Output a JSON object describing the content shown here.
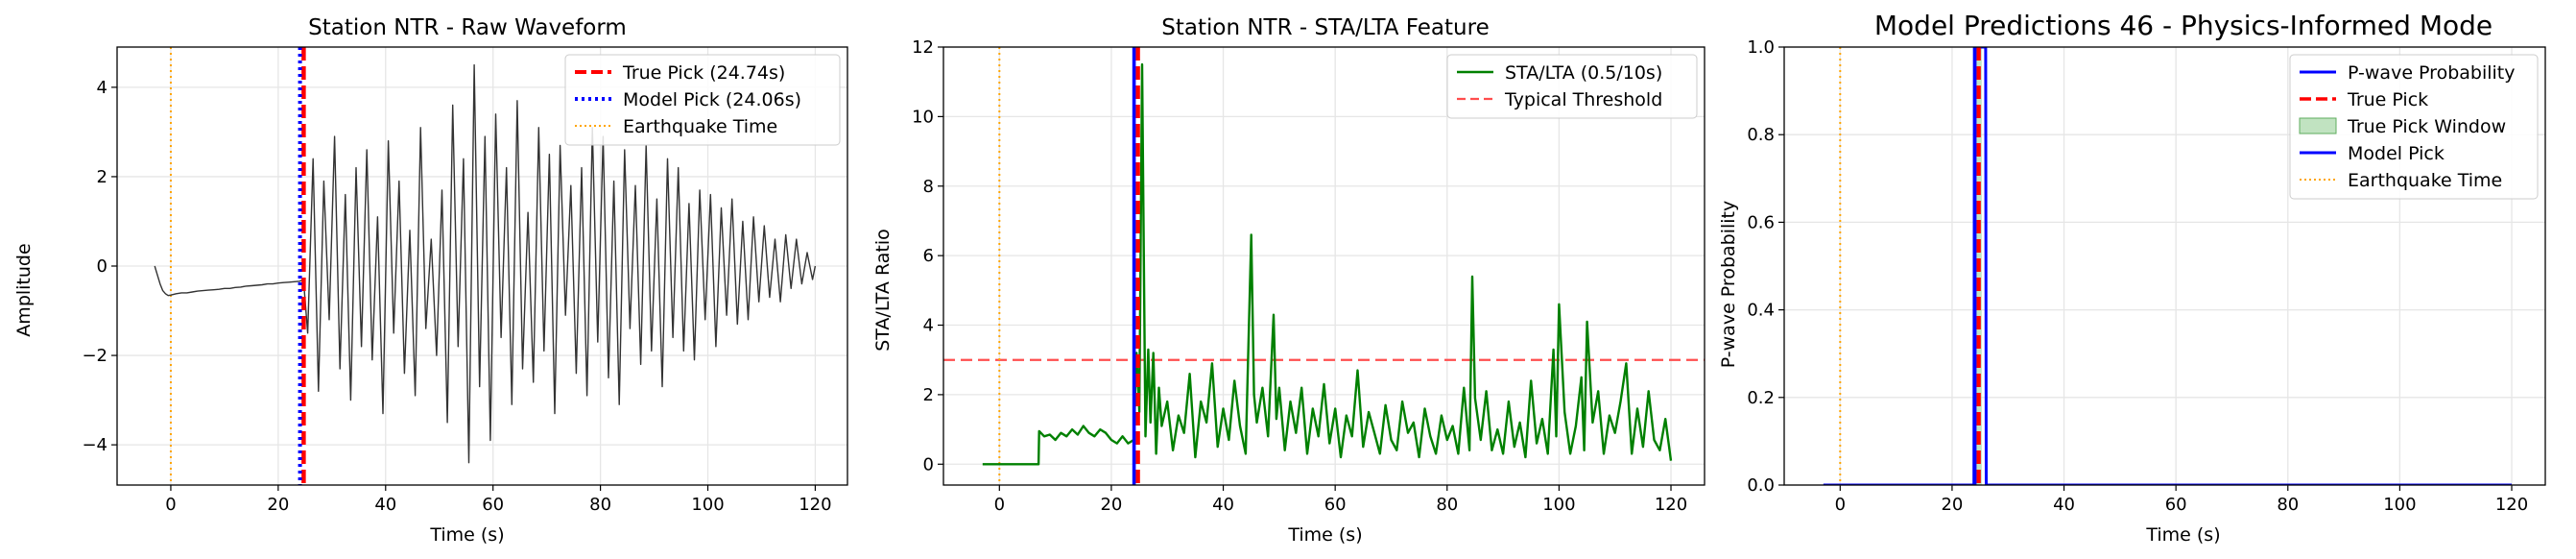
{
  "chart_data": [
    {
      "type": "line",
      "title": "Station NTR - Raw Waveform",
      "xlabel": "Time (s)",
      "ylabel": "Amplitude",
      "xlim": [
        -10,
        126
      ],
      "ylim": [
        -4.9,
        4.9
      ],
      "xticks": [
        0,
        20,
        40,
        60,
        80,
        100,
        120
      ],
      "yticks": [
        -4,
        -2,
        0,
        2,
        4
      ],
      "ytick_labels": [
        "−4",
        "−2",
        "0",
        "2",
        "4"
      ],
      "grid": true,
      "legend_position": "top-right",
      "legend": [
        "True Pick (24.74s)",
        "Model Pick (24.06s)",
        "Earthquake Time"
      ],
      "series": [
        {
          "name": "waveform",
          "color": "#333333",
          "x": [
            -3,
            -2.5,
            -2,
            -1.5,
            -1,
            -0.5,
            0,
            1,
            2,
            3,
            4,
            5,
            6,
            7,
            8,
            9,
            10,
            11,
            12,
            13,
            14,
            15,
            16,
            17,
            18,
            19,
            20,
            21,
            22,
            23,
            24,
            24.7,
            25.5,
            26.5,
            27.5,
            28.5,
            29.5,
            30.5,
            31.5,
            32.5,
            33.5,
            34.5,
            35.5,
            36.5,
            37.5,
            38.5,
            39.5,
            40.5,
            41.5,
            42.5,
            43.5,
            44.5,
            45.5,
            46.5,
            47.5,
            48.5,
            49.5,
            50.5,
            51.5,
            52.5,
            53.5,
            54.5,
            55.5,
            56.5,
            57.5,
            58.5,
            59.5,
            60.5,
            61.5,
            62.5,
            63.5,
            64.5,
            65.5,
            66.5,
            67.5,
            68.5,
            69.5,
            70.5,
            71.5,
            72.5,
            73.5,
            74.5,
            75.5,
            76.5,
            77.5,
            78.5,
            79.5,
            80.5,
            81.5,
            82.5,
            83.5,
            84.5,
            85.5,
            86.5,
            87.5,
            88.5,
            89.5,
            90.5,
            91.5,
            92.5,
            93.5,
            94.5,
            95.5,
            96.5,
            97.5,
            98.5,
            99.5,
            100.5,
            101.5,
            102.5,
            103.5,
            104.5,
            105.5,
            106.5,
            107.5,
            108.5,
            109.5,
            110.5,
            111.5,
            112.5,
            113.5,
            114.5,
            115.5,
            116.5,
            117.5,
            118.5,
            119.5,
            120
          ],
          "y": [
            0,
            -0.2,
            -0.4,
            -0.55,
            -0.62,
            -0.66,
            -0.65,
            -0.62,
            -0.6,
            -0.6,
            -0.58,
            -0.56,
            -0.55,
            -0.54,
            -0.53,
            -0.52,
            -0.5,
            -0.5,
            -0.48,
            -0.47,
            -0.45,
            -0.44,
            -0.43,
            -0.42,
            -0.4,
            -0.4,
            -0.38,
            -0.37,
            -0.36,
            -0.35,
            -0.34,
            -0.3,
            -1.5,
            2.4,
            -2.8,
            1.9,
            -1.2,
            2.9,
            -2.3,
            1.6,
            -3,
            2.2,
            -1.8,
            2.6,
            -2.1,
            1.1,
            -3.3,
            2.8,
            -1.5,
            1.9,
            -2.4,
            0.8,
            -2.9,
            3.1,
            -1.4,
            0.6,
            -2,
            1.7,
            -3.5,
            3.6,
            -1.8,
            2.4,
            -4.4,
            4.5,
            -2.7,
            2.9,
            -3.9,
            3.4,
            -1.6,
            2.2,
            -3.1,
            3.7,
            -2.3,
            1.2,
            -2.6,
            3.1,
            -1.9,
            2.5,
            -3.3,
            2.7,
            -1.1,
            1.8,
            -2.4,
            2.2,
            -2.9,
            3.1,
            -1.7,
            2.9,
            -2.5,
            1.9,
            -3.1,
            2.6,
            -1.4,
            1.8,
            -2.2,
            2.7,
            -1.9,
            1.5,
            -2.7,
            2.4,
            -1.6,
            2.2,
            -1.9,
            1.4,
            -2.1,
            1.7,
            -1.2,
            1.6,
            -1.8,
            1.3,
            -1.1,
            1.5,
            -1.3,
            1,
            -1.2,
            1.1,
            -0.8,
            0.9,
            -0.7,
            0.6,
            -0.8,
            0.7,
            -0.5,
            0.6,
            -0.4,
            0.3,
            -0.3,
            0
          ]
        }
      ],
      "vlines": [
        {
          "x": 24.74,
          "color": "#ff0000",
          "style": "dashed",
          "label": "True Pick (24.74s)"
        },
        {
          "x": 24.06,
          "color": "#0000ff",
          "style": "dotted",
          "label": "Model Pick (24.06s)"
        },
        {
          "x": 0,
          "color": "#ffa500",
          "style": "dotted",
          "label": "Earthquake Time"
        }
      ]
    },
    {
      "type": "line",
      "title": "Station NTR - STA/LTA Feature",
      "xlabel": "Time (s)",
      "ylabel": "STA/LTA Ratio",
      "xlim": [
        -10,
        126
      ],
      "ylim": [
        -0.6,
        12
      ],
      "xticks": [
        0,
        20,
        40,
        60,
        80,
        100,
        120
      ],
      "yticks": [
        0,
        2,
        4,
        6,
        8,
        10,
        12
      ],
      "grid": true,
      "legend_position": "top-right",
      "legend": [
        "STA/LTA (0.5/10s)",
        "Typical Threshold"
      ],
      "series": [
        {
          "name": "STA/LTA (0.5/10s)",
          "color": "#008000",
          "x": [
            -3,
            7,
            7.1,
            8,
            9,
            10,
            11,
            12,
            13,
            14,
            15,
            16,
            17,
            18,
            19,
            20,
            21,
            22,
            23,
            24,
            24.5,
            25,
            25.5,
            26,
            26.1,
            26.6,
            27,
            27.5,
            28,
            28.5,
            29,
            30,
            31,
            32,
            33,
            34,
            35,
            36,
            37,
            38,
            39,
            40,
            41,
            42,
            43,
            44,
            45,
            45.5,
            46,
            47,
            48,
            49,
            49.5,
            50,
            51,
            52,
            53,
            54,
            55,
            56,
            57,
            58,
            59,
            60,
            61,
            62,
            63,
            64,
            65,
            66,
            67,
            68,
            69,
            70,
            71,
            72,
            73,
            74,
            75,
            76,
            77,
            78,
            79,
            80,
            81,
            82,
            83,
            84,
            84.5,
            85,
            86,
            87,
            88,
            89,
            90,
            91,
            92,
            93,
            94,
            95,
            96,
            97,
            98,
            99,
            99.5,
            100,
            101,
            102,
            103,
            104,
            104.5,
            105,
            106,
            107,
            108,
            109,
            110,
            111,
            112,
            113,
            114,
            115,
            116,
            117,
            118,
            119,
            120
          ],
          "y": [
            0,
            0,
            0.95,
            0.8,
            0.85,
            0.7,
            0.9,
            0.8,
            1,
            0.85,
            1.1,
            0.9,
            0.8,
            1,
            0.9,
            0.7,
            0.6,
            0.8,
            0.6,
            0.7,
            3.2,
            1.5,
            11.5,
            2.5,
            0.8,
            3.3,
            1.2,
            3.2,
            0.3,
            2.2,
            1.1,
            1.8,
            0.4,
            1.4,
            0.9,
            2.6,
            0.2,
            1.8,
            1.2,
            2.9,
            0.5,
            1.6,
            0.7,
            2.4,
            1.1,
            0.3,
            6.6,
            2,
            1.2,
            2.2,
            0.8,
            4.3,
            1.3,
            2.2,
            0.4,
            1.8,
            0.9,
            2.2,
            0.3,
            1.6,
            0.8,
            2.3,
            0.6,
            1.6,
            0.2,
            1.4,
            0.8,
            2.7,
            0.5,
            1.5,
            0.9,
            0.3,
            1.7,
            0.7,
            0.4,
            1.8,
            0.9,
            1.2,
            0.2,
            1.6,
            0.8,
            0.3,
            1.4,
            0.7,
            1.1,
            0.3,
            2.2,
            0.4,
            5.4,
            1.9,
            0.7,
            2.1,
            0.4,
            1,
            0.3,
            1.8,
            0.5,
            1.2,
            0.2,
            2.4,
            0.6,
            1.3,
            0.3,
            3.3,
            0.8,
            4.6,
            1.5,
            0.3,
            1.1,
            2.5,
            0.4,
            4.1,
            1.2,
            2.1,
            0.3,
            1.4,
            0.9,
            1.8,
            2.9,
            0.3,
            1.6,
            0.5,
            2.1,
            0.7,
            0.4,
            1.3,
            0.1
          ]
        }
      ],
      "hline": {
        "y": 3,
        "color": "#ff4d4d",
        "style": "dashed",
        "label": "Typical Threshold"
      },
      "vlines": [
        {
          "x": 24.74,
          "color": "#ff0000",
          "style": "dashed"
        },
        {
          "x": 24.06,
          "color": "#0000ff",
          "style": "solid"
        },
        {
          "x": 0,
          "color": "#ffa500",
          "style": "dotted"
        }
      ]
    },
    {
      "type": "line",
      "title": "Model Predictions 46 - Physics-Informed Mode",
      "xlabel": "Time (s)",
      "ylabel": "P-wave Probability",
      "xlim": [
        -10,
        126
      ],
      "ylim": [
        0,
        1
      ],
      "xticks": [
        0,
        20,
        40,
        60,
        80,
        100,
        120
      ],
      "yticks": [
        0,
        0.2,
        0.4,
        0.6,
        0.8,
        1.0
      ],
      "ytick_labels": [
        "0.0",
        "0.2",
        "0.4",
        "0.6",
        "0.8",
        "1.0"
      ],
      "grid": true,
      "legend_position": "top-right",
      "legend": [
        "P-wave Probability",
        "True Pick",
        "True Pick Window",
        "Model Pick",
        "Earthquake Time"
      ],
      "series": [
        {
          "name": "P-wave Probability",
          "color": "#0000ff",
          "x": [
            -3,
            23.9,
            24.0,
            26.0,
            26.1,
            120
          ],
          "y": [
            0,
            0,
            1,
            1,
            0,
            0
          ]
        }
      ],
      "shaded": {
        "x0": 24.2,
        "x1": 25.3,
        "color": "#98d098",
        "label": "True Pick Window"
      },
      "vlines": [
        {
          "x": 24.74,
          "color": "#ff0000",
          "style": "dashed",
          "label": "True Pick"
        },
        {
          "x": 24.06,
          "color": "#0000ff",
          "style": "solid",
          "label": "Model Pick"
        },
        {
          "x": 0,
          "color": "#ffa500",
          "style": "dotted",
          "label": "Earthquake Time"
        }
      ]
    }
  ]
}
